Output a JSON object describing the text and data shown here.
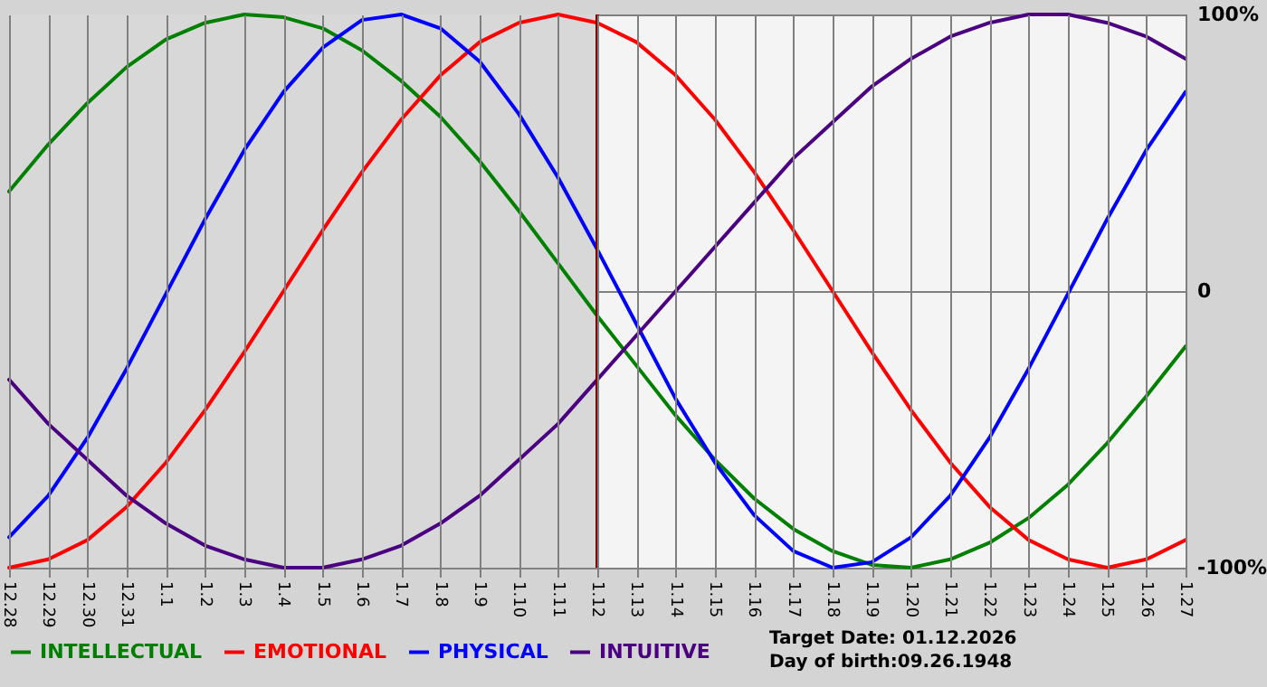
{
  "chart_data": {
    "type": "line",
    "categories": [
      "12.28",
      "12.29",
      "12.30",
      "12.31",
      "1.1",
      "1.2",
      "1.3",
      "1.4",
      "1.5",
      "1.6",
      "1.7",
      "1.8",
      "1.9",
      "1.10",
      "1.11",
      "1.12",
      "1.13",
      "1.14",
      "1.15",
      "1.16",
      "1.17",
      "1.18",
      "1.19",
      "1.20",
      "1.21",
      "1.22",
      "1.23",
      "1.24",
      "1.25",
      "1.26",
      "1.27"
    ],
    "series": [
      {
        "name": "INTELLECTUAL",
        "color": "#008000",
        "values": [
          36,
          53,
          68,
          81,
          91,
          97,
          100,
          99,
          95,
          87,
          76,
          63,
          47,
          29,
          10,
          -9,
          -27,
          -45,
          -61,
          -75,
          -86,
          -94,
          -99,
          -100,
          -97,
          -91,
          -82,
          -70,
          -55,
          -38,
          -20
        ]
      },
      {
        "name": "EMOTIONAL",
        "color": "#ff0000",
        "values": [
          -100,
          -97,
          -90,
          -78,
          -62,
          -43,
          -22,
          0,
          22,
          43,
          62,
          78,
          90,
          97,
          100,
          97,
          90,
          78,
          62,
          43,
          22,
          0,
          -22,
          -43,
          -62,
          -78,
          -90,
          -97,
          -100,
          -97,
          -90
        ]
      },
      {
        "name": "PHYSICAL",
        "color": "#0000ff",
        "values": [
          -89,
          -74,
          -53,
          -28,
          -1,
          26,
          51,
          72,
          88,
          98,
          100,
          95,
          83,
          64,
          41,
          15,
          -12,
          -39,
          -62,
          -81,
          -94,
          -100,
          -98,
          -89,
          -74,
          -53,
          -28,
          -1,
          26,
          51,
          72
        ]
      },
      {
        "name": "INTUITIVE",
        "color": "#4b0082",
        "values": [
          -32,
          -48,
          -61,
          -74,
          -84,
          -92,
          -97,
          -100,
          -100,
          -97,
          -92,
          -84,
          -74,
          -61,
          -48,
          -32,
          -16,
          0,
          16,
          32,
          48,
          61,
          74,
          84,
          92,
          97,
          100,
          100,
          97,
          92,
          84
        ]
      }
    ],
    "ylim": [
      -100,
      100
    ],
    "yticks": [
      {
        "value": 100,
        "label": "100%"
      },
      0,
      {
        "value": -100,
        "label": "-100%"
      }
    ],
    "ref_lines": [
      {
        "axis": "x",
        "value": "1.12",
        "color": "#800000"
      }
    ],
    "bands": [
      {
        "axis": "x",
        "from": "12.28",
        "to": "1.12",
        "color": "#d8d8d8"
      }
    ],
    "annotations": [
      "Target Date: 01.12.2026",
      "Day of birth:09.26.1948"
    ],
    "grid": true,
    "legend": "bottom left",
    "marker": "none",
    "line_style": "solid"
  }
}
